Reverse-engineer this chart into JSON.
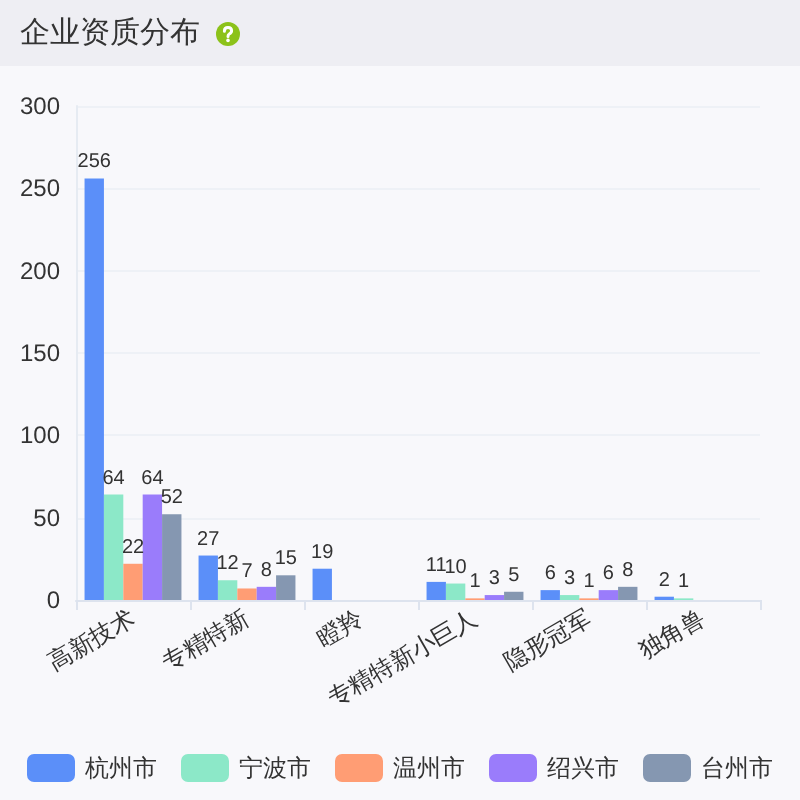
{
  "chart_data": {
    "type": "bar",
    "title": "企业资质分布",
    "categories": [
      "高新技术",
      "专精特新",
      "瞪羚",
      "专精特新小巨人",
      "隐形冠军",
      "独角兽"
    ],
    "series": [
      {
        "name": "杭州市",
        "color": "#5b8ff9",
        "values": [
          256,
          27,
          19,
          11,
          6,
          2
        ]
      },
      {
        "name": "宁波市",
        "color": "#8ce8c8",
        "values": [
          64,
          12,
          null,
          10,
          3,
          1
        ]
      },
      {
        "name": "温州市",
        "color": "#ff9d74",
        "values": [
          22,
          7,
          null,
          1,
          1,
          null
        ]
      },
      {
        "name": "绍兴市",
        "color": "#9a7cfb",
        "values": [
          64,
          8,
          null,
          3,
          6,
          null
        ]
      },
      {
        "name": "台州市",
        "color": "#8597b1",
        "values": [
          52,
          15,
          null,
          5,
          8,
          null
        ]
      }
    ],
    "ylim": [
      0,
      300
    ],
    "yticks": [
      0,
      50,
      100,
      150,
      200,
      250,
      300
    ],
    "grid": "y",
    "legend": "bottom",
    "data_labels": true
  }
}
